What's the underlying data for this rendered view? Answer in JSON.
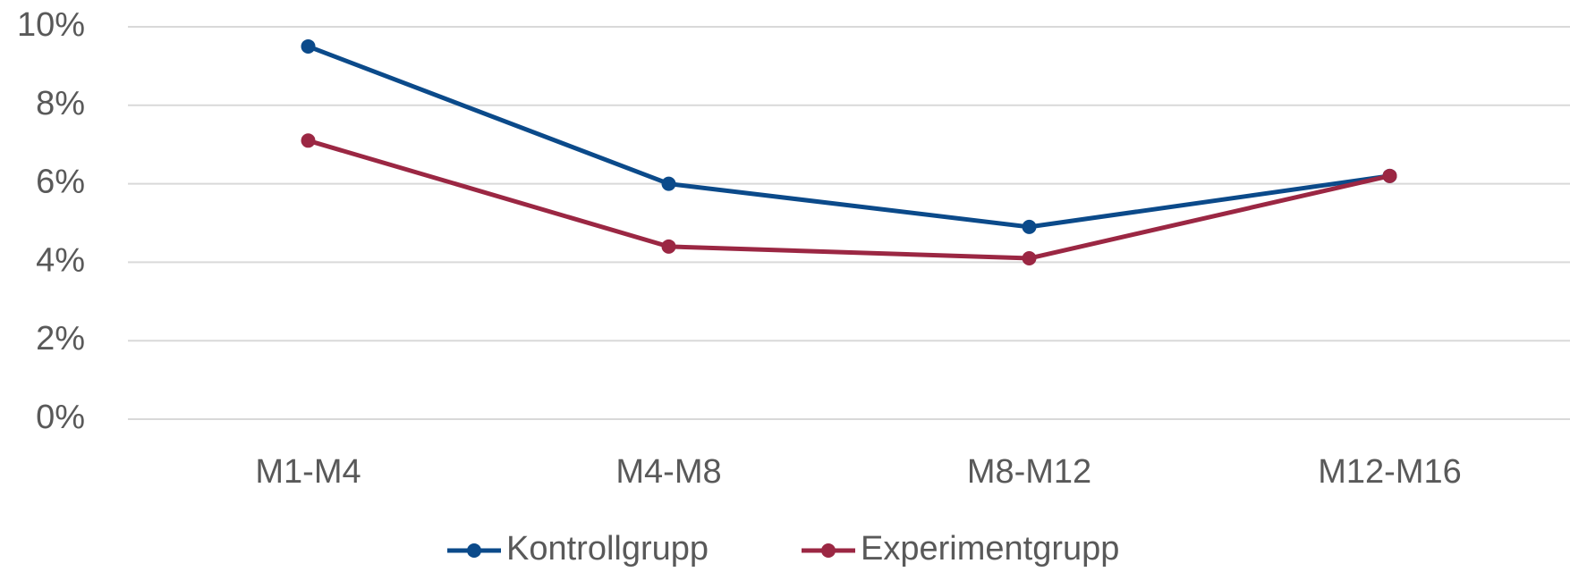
{
  "chart_data": {
    "type": "line",
    "categories": [
      "M1-M4",
      "M4-M8",
      "M8-M12",
      "M12-M16"
    ],
    "series": [
      {
        "name": "Kontrollgrupp",
        "color": "#0b4a8a",
        "values": [
          9.5,
          6.0,
          4.9,
          6.2
        ]
      },
      {
        "name": "Experimentgrupp",
        "color": "#9b2743",
        "values": [
          7.1,
          4.4,
          4.1,
          6.2
        ]
      }
    ],
    "ylim": [
      0,
      10
    ],
    "yticks": [
      {
        "value": 0,
        "label": "0%"
      },
      {
        "value": 2,
        "label": "2%"
      },
      {
        "value": 4,
        "label": "4%"
      },
      {
        "value": 6,
        "label": "6%"
      },
      {
        "value": 8,
        "label": "8%"
      },
      {
        "value": 10,
        "label": "10%"
      }
    ],
    "grid": true,
    "legend": "bottom"
  }
}
